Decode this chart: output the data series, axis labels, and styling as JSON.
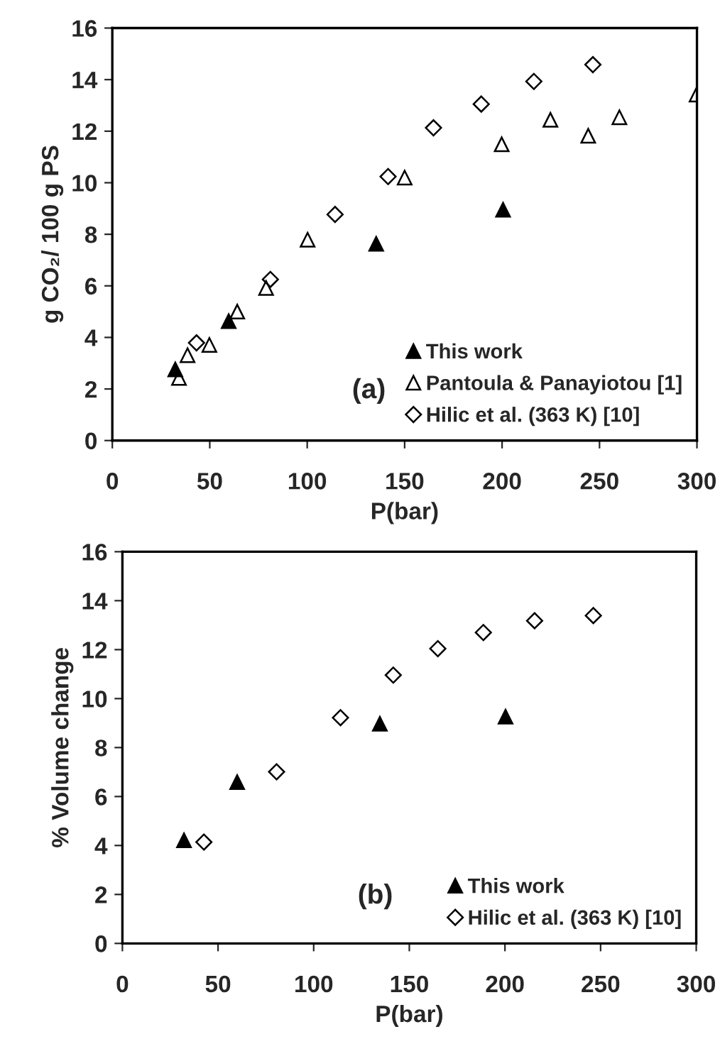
{
  "chart_data": [
    {
      "type": "scatter",
      "xlabel": "P(bar)",
      "ylabel": "g CO₂/ 100 g PS",
      "xlim": [
        0,
        300
      ],
      "ylim": [
        0,
        16
      ],
      "xticks": [
        0,
        50,
        100,
        150,
        200,
        250,
        300
      ],
      "yticks": [
        0,
        2,
        4,
        6,
        8,
        10,
        12,
        14,
        16
      ],
      "grid": false,
      "legend": "bottom right",
      "annotations": [
        "(a)"
      ],
      "series": [
        {
          "name": "This work",
          "color": "#000000",
          "marker": "triangle",
          "x": [
            32.3,
            59.7,
            135.4,
            200.5
          ],
          "values": [
            2.76,
            4.63,
            7.63,
            8.95
          ]
        },
        {
          "name": "Pantoula & Panayiotou [1]",
          "color": "#000000",
          "marker": "triangle",
          "x": [
            34.2,
            38.6,
            49.8,
            64.1,
            78.9,
            100.2,
            150,
            199.8,
            224.8,
            244.2,
            260.2,
            299.8
          ],
          "values": [
            2.43,
            3.31,
            3.71,
            5.0,
            5.92,
            7.79,
            10.2,
            11.49,
            12.44,
            11.82,
            12.54,
            13.42
          ]
        },
        {
          "name": "Hilic et al. (363 K) [10]",
          "color": "#000000",
          "marker": "diamond",
          "x": [
            43.2,
            81.1,
            114.3,
            141.5,
            164.8,
            189.3,
            216.3,
            246.6
          ],
          "values": [
            3.79,
            6.25,
            8.77,
            10.24,
            12.13,
            13.05,
            13.93,
            14.58
          ]
        }
      ]
    },
    {
      "type": "scatter",
      "xlabel": "P(bar)",
      "ylabel": "% Volume change",
      "xlim": [
        0,
        300
      ],
      "ylim": [
        0,
        16
      ],
      "xticks": [
        0,
        50,
        100,
        150,
        200,
        250,
        300
      ],
      "yticks": [
        0,
        2,
        4,
        6,
        8,
        10,
        12,
        14,
        16
      ],
      "grid": false,
      "legend": "bottom right",
      "annotations": [
        "(b)"
      ],
      "series": [
        {
          "name": "This work",
          "color": "#000000",
          "marker": "triangle",
          "x": [
            32.2,
            60,
            134.6,
            200.3
          ],
          "values": [
            4.21,
            6.59,
            8.97,
            9.26
          ]
        },
        {
          "name": "Hilic et al. (363 K) [10]",
          "color": "#000000",
          "marker": "diamond",
          "x": [
            42.6,
            80.6,
            114,
            141.6,
            164.9,
            188.7,
            215.5,
            246.2
          ],
          "values": [
            4.14,
            7.01,
            9.22,
            10.96,
            12.04,
            12.7,
            13.18,
            13.39
          ]
        }
      ]
    }
  ]
}
